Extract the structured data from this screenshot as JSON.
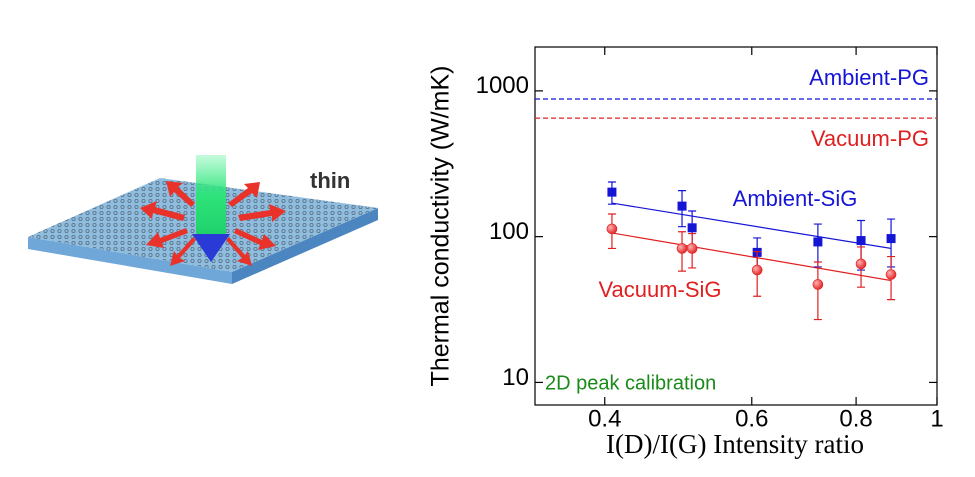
{
  "chart_data": {
    "type": "scatter",
    "illustration_label": "thin",
    "xlabel": "I(D)/I(G) Intensity ratio",
    "ylabel": "Thermal conductivity (W/mK)",
    "xscale": "log",
    "yscale": "log",
    "xlim": [
      0.33,
      1
    ],
    "xticks": [
      0.4,
      0.6,
      0.8,
      1
    ],
    "ylim": [
      7,
      2000
    ],
    "yticks": [
      10,
      100,
      1000
    ],
    "x": [
      0.408,
      0.495,
      0.509,
      0.609,
      0.72,
      0.811,
      0.881
    ],
    "series": [
      {
        "name": "Ambient-SiG",
        "color": "#1515d6",
        "marker": "square",
        "values": [
          202,
          162,
          115,
          78,
          92,
          94,
          97
        ],
        "errors": [
          35,
          45,
          35,
          20,
          30,
          35,
          35
        ]
      },
      {
        "name": "Vacuum-SiG",
        "color": "#e02020",
        "marker": "circle",
        "values": [
          113,
          83,
          83,
          59,
          47,
          65,
          55
        ],
        "errors": [
          30,
          25,
          22,
          20,
          20,
          20,
          18
        ]
      }
    ],
    "fit_lines": [
      {
        "color": "#1515d6",
        "x": [
          0.408,
          0.881
        ],
        "values": [
          170,
          83
        ]
      },
      {
        "color": "#e02020",
        "x": [
          0.408,
          0.881
        ],
        "values": [
          106,
          50
        ]
      }
    ],
    "reference_lines": [
      {
        "name": "Ambient-PG",
        "color": "#1515d6",
        "value": 880
      },
      {
        "name": "Vacuum-PG",
        "color": "#e02020",
        "value": 650
      }
    ],
    "annotation": {
      "text": "2D peak calibration",
      "color": "#1a8a1a"
    }
  }
}
